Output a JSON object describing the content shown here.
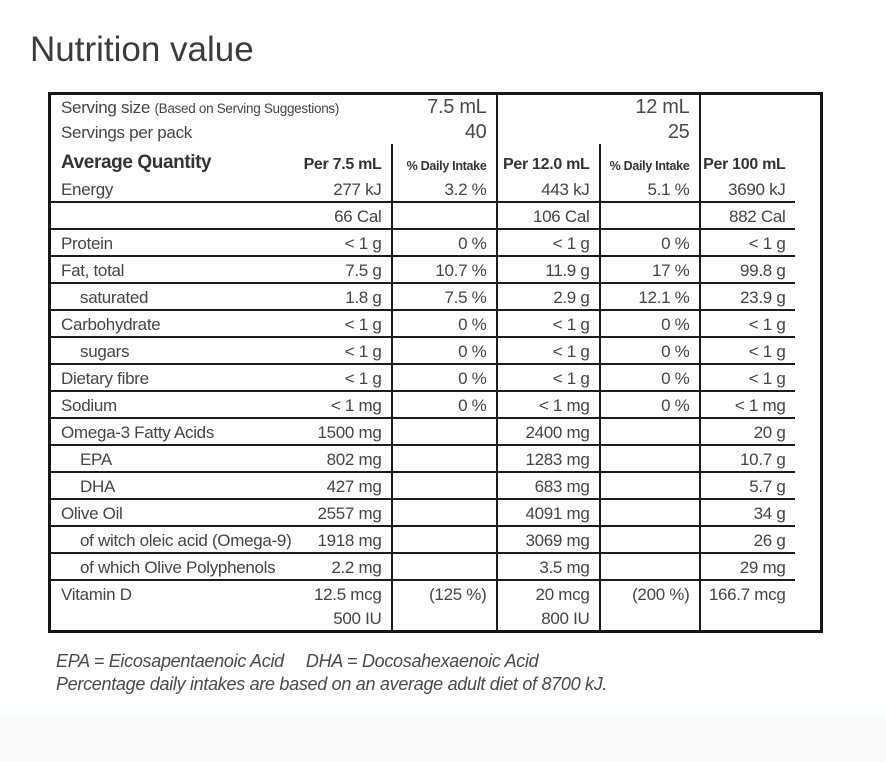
{
  "page": {
    "title": "Nutrition value"
  },
  "colors": {
    "border": "#1d1d1d",
    "text": "#454545",
    "title": "#3c3c3c"
  },
  "table": {
    "serving_rows": [
      {
        "label": "Serving size",
        "label_note": "(Based on Serving Suggestions)",
        "v1": "7.5 mL",
        "v2": "12 mL"
      },
      {
        "label": "Servings per pack",
        "label_note": "",
        "v1": "40",
        "v2": "25"
      }
    ],
    "header": {
      "label": "Average Quantity",
      "col1": "Per 7.5 mL",
      "col2": "% Daily Intake",
      "col3": "Per 12.0 mL",
      "col4": "% Daily Intake",
      "col5": "Per 100 mL"
    },
    "rows": [
      {
        "label": "Energy",
        "c1": "277 kJ",
        "c2": "3.2 %",
        "c3": "443 kJ",
        "c4": "5.1 %",
        "c5": "3690 kJ"
      },
      {
        "label": "",
        "c1": "66 Cal",
        "c2": "",
        "c3": "106 Cal",
        "c4": "",
        "c5": "882 Cal"
      },
      {
        "label": "Protein",
        "c1": "< 1 g",
        "c2": "0 %",
        "c3": "< 1 g",
        "c4": "0 %",
        "c5": "< 1 g"
      },
      {
        "label": "Fat, total",
        "c1": "7.5 g",
        "c2": "10.7 %",
        "c3": "11.9 g",
        "c4": "17 %",
        "c5": "99.8 g"
      },
      {
        "label": "saturated",
        "c1": "1.8 g",
        "c2": "7.5 %",
        "c3": "2.9 g",
        "c4": "12.1 %",
        "c5": "23.9 g"
      },
      {
        "label": "Carbohydrate",
        "c1": "< 1 g",
        "c2": "0 %",
        "c3": "< 1 g",
        "c4": "0 %",
        "c5": "< 1 g"
      },
      {
        "label": "sugars",
        "c1": "< 1 g",
        "c2": "0 %",
        "c3": "< 1 g",
        "c4": "0 %",
        "c5": "< 1 g"
      },
      {
        "label": "Dietary fibre",
        "c1": "< 1 g",
        "c2": "0 %",
        "c3": "< 1 g",
        "c4": "0 %",
        "c5": "< 1 g"
      },
      {
        "label": "Sodium",
        "c1": "< 1 mg",
        "c2": "0 %",
        "c3": "< 1 mg",
        "c4": "0 %",
        "c5": "< 1 mg"
      },
      {
        "label": "Omega-3 Fatty Acids",
        "c1": "1500 mg",
        "c2": "",
        "c3": "2400 mg",
        "c4": "",
        "c5": "20 g"
      },
      {
        "label": "EPA",
        "c1": "802 mg",
        "c2": "",
        "c3": "1283 mg",
        "c4": "",
        "c5": "10.7 g"
      },
      {
        "label": "DHA",
        "c1": "427 mg",
        "c2": "",
        "c3": "683 mg",
        "c4": "",
        "c5": "5.7 g"
      },
      {
        "label": "Olive Oil",
        "c1": "2557 mg",
        "c2": "",
        "c3": "4091 mg",
        "c4": "",
        "c5": "34 g"
      },
      {
        "label": "of witch oleic acid (Omega-9)",
        "c1": "1918 mg",
        "c2": "",
        "c3": "3069 mg",
        "c4": "",
        "c5": "26 g"
      },
      {
        "label": "of which Olive Polyphenols",
        "c1": "2.2 mg",
        "c2": "",
        "c3": "3.5 mg",
        "c4": "",
        "c5": "29 mg"
      },
      {
        "label": "Vitamin D",
        "c1": "12.5 mcg",
        "c2": "(125 %)",
        "c3": "20 mcg",
        "c4": "(200 %)",
        "c5": "166.7 mcg"
      },
      {
        "label": "",
        "c1": "500 IU",
        "c2": "",
        "c3": "800 IU",
        "c4": "",
        "c5": ""
      }
    ],
    "footnotes": {
      "epa": "EPA = Eicosapentaenoic Acid",
      "dha": "DHA = Docosahexaenoic Acid",
      "daily": "Percentage daily intakes are based on an average adult diet of 8700 kJ."
    }
  }
}
